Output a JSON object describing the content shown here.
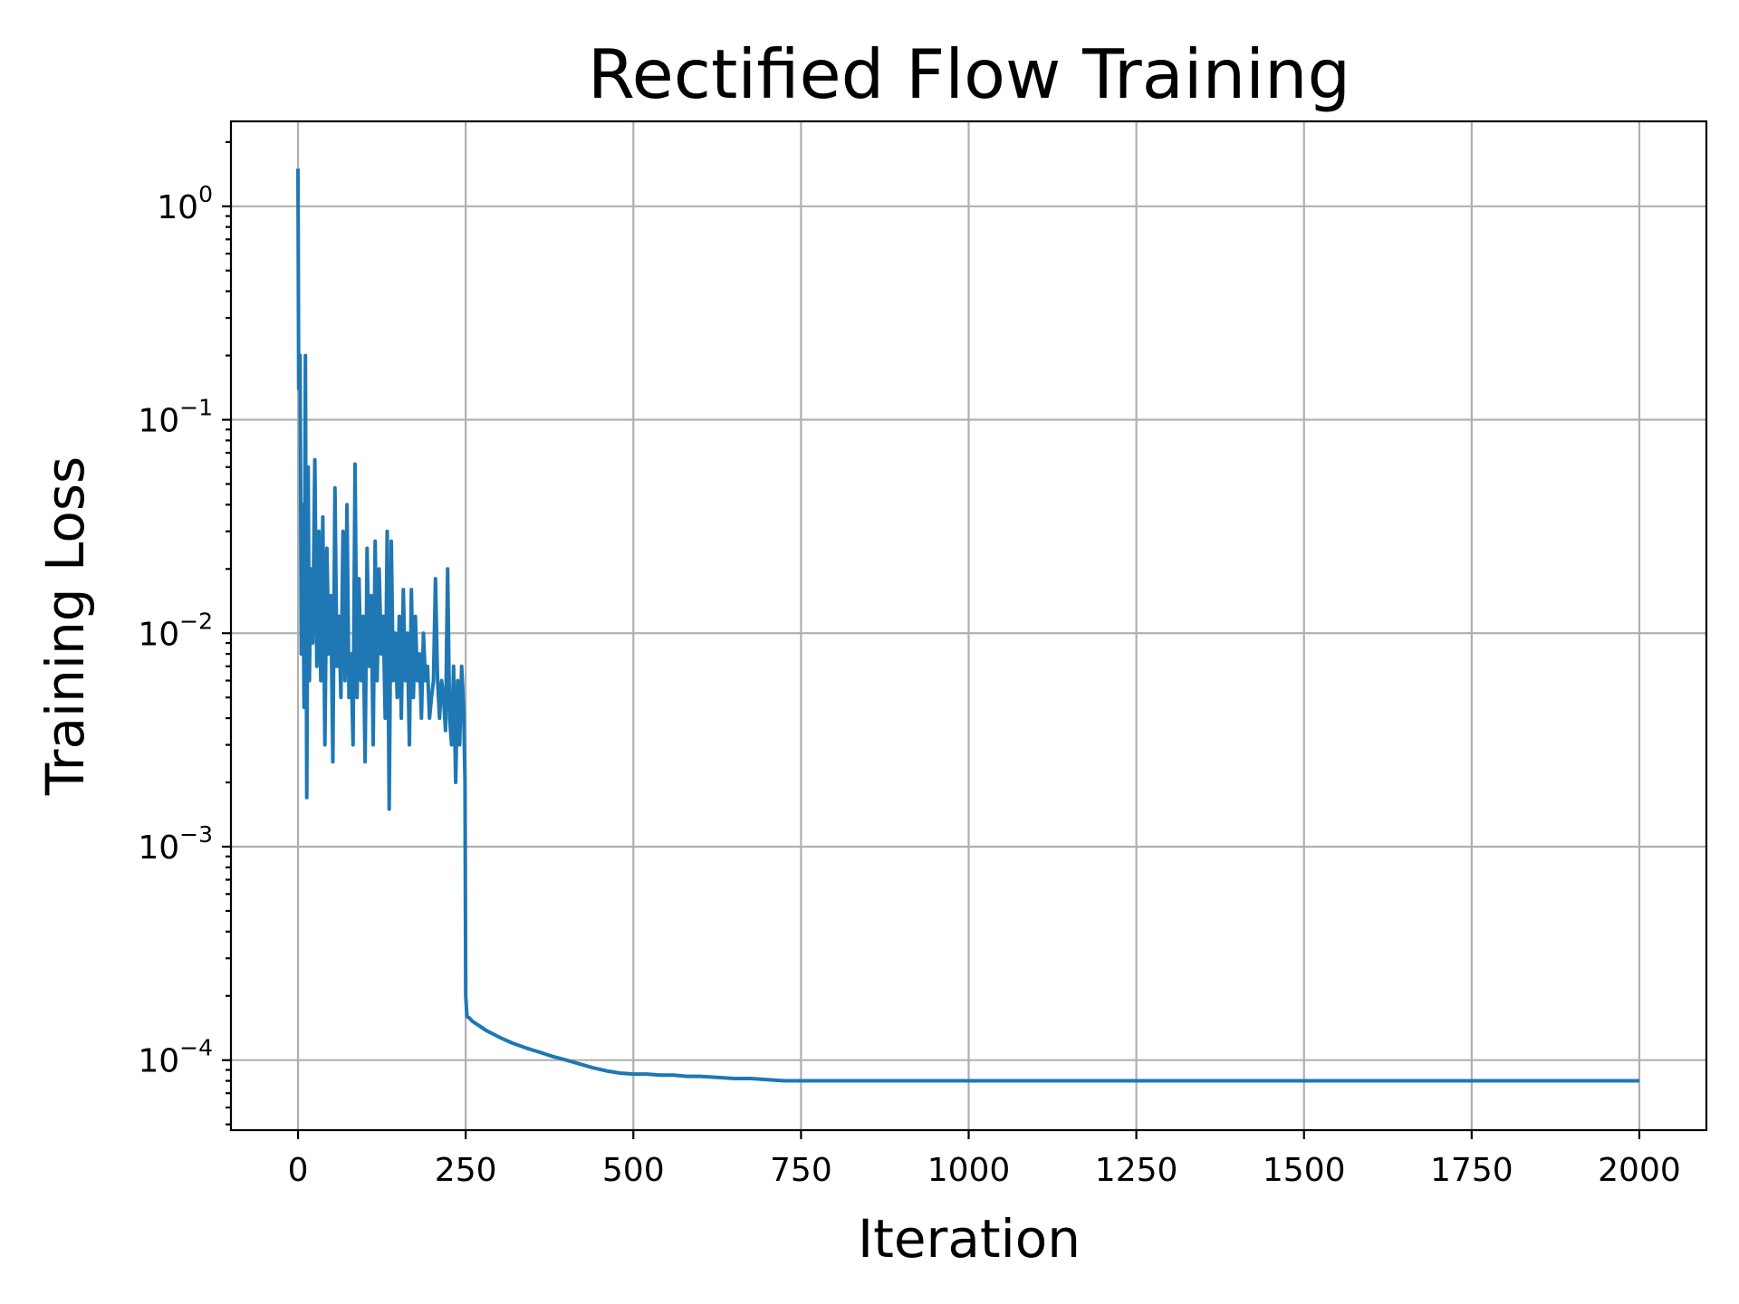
{
  "chart_data": {
    "type": "line",
    "title": "Rectified Flow Training",
    "xlabel": "Iteration",
    "ylabel": "Training Loss",
    "yscale": "log",
    "xlim": [
      -100,
      2100
    ],
    "ylim": [
      4.7e-05,
      2.5
    ],
    "grid": true,
    "x_ticks": [
      {
        "value": 0,
        "label": "0"
      },
      {
        "value": 250,
        "label": "250"
      },
      {
        "value": 500,
        "label": "500"
      },
      {
        "value": 750,
        "label": "750"
      },
      {
        "value": 1000,
        "label": "1000"
      },
      {
        "value": 1250,
        "label": "1250"
      },
      {
        "value": 1500,
        "label": "1500"
      },
      {
        "value": 1750,
        "label": "1750"
      },
      {
        "value": 2000,
        "label": "2000"
      }
    ],
    "y_ticks": [
      {
        "value": 1,
        "base": "10",
        "exp": "0"
      },
      {
        "value": 0.1,
        "base": "10",
        "exp": "−1"
      },
      {
        "value": 0.01,
        "base": "10",
        "exp": "−2"
      },
      {
        "value": 0.001,
        "base": "10",
        "exp": "−3"
      },
      {
        "value": 0.0001,
        "base": "10",
        "exp": "−4"
      }
    ],
    "series": [
      {
        "color": "#1f77b4",
        "x": [
          0,
          1,
          3,
          5,
          7,
          9,
          11,
          13,
          15,
          17,
          19,
          22,
          25,
          28,
          31,
          34,
          37,
          40,
          43,
          46,
          49,
          52,
          55,
          58,
          61,
          64,
          67,
          70,
          73,
          76,
          79,
          82,
          85,
          88,
          91,
          94,
          97,
          100,
          103,
          106,
          109,
          112,
          115,
          118,
          121,
          124,
          127,
          130,
          133,
          136,
          139,
          142,
          145,
          148,
          151,
          154,
          157,
          160,
          163,
          166,
          169,
          172,
          175,
          178,
          181,
          184,
          187,
          190,
          193,
          196,
          199,
          202,
          205,
          208,
          211,
          214,
          217,
          220,
          223,
          226,
          229,
          232,
          235,
          238,
          241,
          244,
          247,
          249,
          250,
          252,
          255,
          260,
          270,
          280,
          290,
          300,
          320,
          340,
          360,
          380,
          400,
          420,
          440,
          460,
          480,
          500,
          520,
          540,
          560,
          580,
          600,
          625,
          650,
          675,
          700,
          725,
          750,
          775,
          800,
          850,
          900,
          950,
          1000,
          1050,
          1100,
          1150,
          1200,
          1250,
          1300,
          1350,
          1400,
          1450,
          1500,
          1550,
          1600,
          1650,
          1700,
          1750,
          1800,
          1850,
          1900,
          1950,
          2000
        ],
        "y": [
          1.5,
          0.14,
          0.2,
          0.008,
          0.04,
          0.0045,
          0.2,
          0.0017,
          0.06,
          0.006,
          0.02,
          0.009,
          0.065,
          0.007,
          0.03,
          0.006,
          0.035,
          0.003,
          0.025,
          0.008,
          0.015,
          0.0025,
          0.048,
          0.007,
          0.012,
          0.005,
          0.03,
          0.006,
          0.04,
          0.005,
          0.008,
          0.003,
          0.062,
          0.005,
          0.018,
          0.006,
          0.012,
          0.0025,
          0.025,
          0.007,
          0.015,
          0.003,
          0.027,
          0.006,
          0.02,
          0.008,
          0.012,
          0.004,
          0.03,
          0.0015,
          0.027,
          0.006,
          0.01,
          0.005,
          0.012,
          0.004,
          0.016,
          0.006,
          0.01,
          0.003,
          0.016,
          0.005,
          0.012,
          0.006,
          0.008,
          0.004,
          0.01,
          0.006,
          0.007,
          0.004,
          0.005,
          0.006,
          0.018,
          0.006,
          0.004,
          0.006,
          0.005,
          0.0035,
          0.02,
          0.004,
          0.003,
          0.007,
          0.002,
          0.006,
          0.003,
          0.007,
          0.0045,
          0.002,
          0.0002,
          0.00016,
          0.000158,
          0.000152,
          0.000145,
          0.000138,
          0.000133,
          0.000128,
          0.00012,
          0.000114,
          0.000109,
          0.000104,
          0.0001,
          9.6e-05,
          9.2e-05,
          8.9e-05,
          8.7e-05,
          8.6e-05,
          8.6e-05,
          8.5e-05,
          8.5e-05,
          8.4e-05,
          8.4e-05,
          8.3e-05,
          8.2e-05,
          8.2e-05,
          8.1e-05,
          8e-05,
          8e-05,
          8e-05,
          8e-05,
          8e-05,
          8e-05,
          8e-05,
          8e-05,
          8e-05,
          8e-05,
          8e-05,
          8e-05,
          8e-05,
          8e-05,
          8e-05,
          8e-05,
          8e-05,
          8e-05,
          8e-05,
          8e-05,
          8e-05,
          8e-05,
          8e-05,
          8e-05,
          8e-05,
          8e-05,
          8e-05,
          8e-05
        ]
      }
    ]
  }
}
